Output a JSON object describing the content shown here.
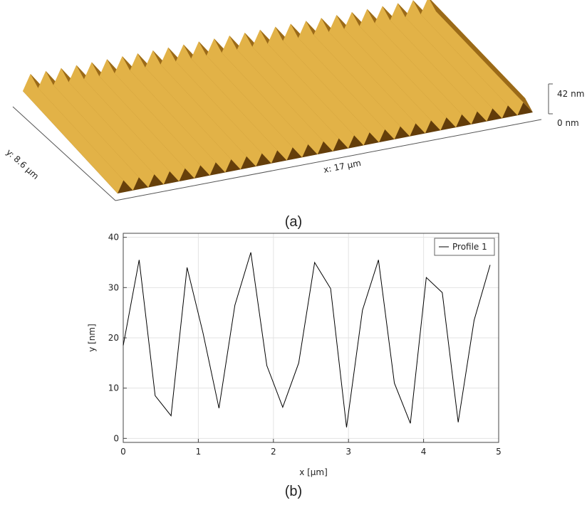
{
  "surface": {
    "z_max_label": "42 nm",
    "z_min_label": "0 nm",
    "x_label": "x: 17 µm",
    "y_label": "y: 8.6 µm",
    "caption": "(a)"
  },
  "chart_data": {
    "type": "line",
    "caption": "(b)",
    "x_label": "x [µm]",
    "y_label": "y [nm]",
    "x": [
      0,
      0.212,
      0.425,
      0.637,
      0.85,
      1.062,
      1.275,
      1.487,
      1.699,
      1.912,
      2.124,
      2.337,
      2.549,
      2.762,
      2.974,
      3.186,
      3.399,
      3.611,
      3.824,
      4.036,
      4.249,
      4.461,
      4.673,
      4.886
    ],
    "series": [
      {
        "name": "Profile 1",
        "color": "#000000",
        "values": [
          18.5,
          35.5,
          8.5,
          4.5,
          34,
          21,
          6,
          26.5,
          37,
          14.5,
          6.2,
          15,
          35,
          29.8,
          2.2,
          25.5,
          35.5,
          11,
          3,
          32,
          29,
          3.2,
          23.5,
          34.5
        ]
      }
    ],
    "xlim": [
      0,
      5
    ],
    "ylim": [
      -0.8,
      40.8
    ],
    "xticks": [
      0,
      1,
      2,
      3,
      4,
      5
    ],
    "yticks": [
      0,
      10,
      20,
      30,
      40
    ],
    "grid": true,
    "legend": "top-right"
  }
}
